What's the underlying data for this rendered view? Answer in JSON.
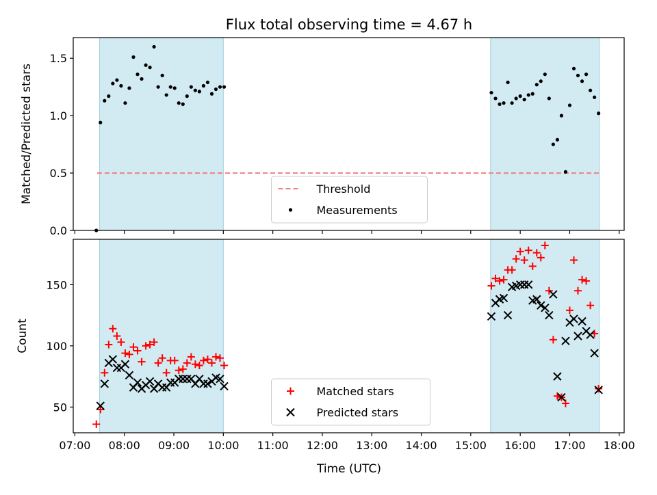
{
  "chart_data": {
    "title": "Flux total observing time = 4.67 h",
    "xlabel": "Time (UTC)",
    "x_ticks": [
      "07:00",
      "08:00",
      "09:00",
      "10:00",
      "11:00",
      "12:00",
      "13:00",
      "14:00",
      "15:00",
      "16:00",
      "17:00",
      "18:00"
    ],
    "x_range": [
      "06:58",
      "18:06"
    ],
    "shaded_intervals": [
      [
        "07:30",
        "10:00"
      ],
      [
        "15:24",
        "17:36"
      ]
    ],
    "shade_color": "#add8e6",
    "panels": [
      {
        "type": "scatter",
        "ylabel": "Matched/Predicted stars",
        "ylim": [
          0,
          1.68
        ],
        "y_ticks": [
          0.0,
          0.5,
          1.0,
          1.5
        ],
        "y_tick_labels": [
          "0.0",
          "0.5",
          "1.0",
          "1.5"
        ],
        "legend_position": "lower center",
        "series": [
          {
            "name": "Threshold",
            "kind": "dashed-line",
            "color": "#f08080",
            "points": [
              [
                "07:27",
                0.5
              ],
              [
                "17:37",
                0.5
              ]
            ]
          },
          {
            "name": "Measurements",
            "kind": "dot",
            "color": "#000000",
            "points": [
              [
                "07:26",
                0.0
              ],
              [
                "07:31",
                0.94
              ],
              [
                "07:36",
                1.13
              ],
              [
                "07:41",
                1.17
              ],
              [
                "07:46",
                1.28
              ],
              [
                "07:51",
                1.31
              ],
              [
                "07:56",
                1.26
              ],
              [
                "08:01",
                1.11
              ],
              [
                "08:06",
                1.24
              ],
              [
                "08:11",
                1.51
              ],
              [
                "08:16",
                1.36
              ],
              [
                "08:21",
                1.32
              ],
              [
                "08:26",
                1.44
              ],
              [
                "08:31",
                1.42
              ],
              [
                "08:36",
                1.6
              ],
              [
                "08:41",
                1.25
              ],
              [
                "08:46",
                1.35
              ],
              [
                "08:51",
                1.18
              ],
              [
                "08:56",
                1.25
              ],
              [
                "09:01",
                1.24
              ],
              [
                "09:06",
                1.11
              ],
              [
                "09:11",
                1.1
              ],
              [
                "09:16",
                1.17
              ],
              [
                "09:21",
                1.25
              ],
              [
                "09:26",
                1.22
              ],
              [
                "09:31",
                1.21
              ],
              [
                "09:36",
                1.26
              ],
              [
                "09:41",
                1.29
              ],
              [
                "09:46",
                1.19
              ],
              [
                "09:51",
                1.23
              ],
              [
                "09:56",
                1.25
              ],
              [
                "10:01",
                1.25
              ],
              [
                "15:25",
                1.2
              ],
              [
                "15:30",
                1.15
              ],
              [
                "15:35",
                1.1
              ],
              [
                "15:40",
                1.11
              ],
              [
                "15:45",
                1.29
              ],
              [
                "15:50",
                1.11
              ],
              [
                "15:55",
                1.15
              ],
              [
                "16:00",
                1.17
              ],
              [
                "16:05",
                1.14
              ],
              [
                "16:10",
                1.18
              ],
              [
                "16:15",
                1.19
              ],
              [
                "16:20",
                1.27
              ],
              [
                "16:25",
                1.3
              ],
              [
                "16:30",
                1.36
              ],
              [
                "16:35",
                1.15
              ],
              [
                "16:40",
                0.75
              ],
              [
                "16:45",
                0.79
              ],
              [
                "16:50",
                1.0
              ],
              [
                "16:55",
                0.51
              ],
              [
                "17:00",
                1.09
              ],
              [
                "17:05",
                1.41
              ],
              [
                "17:10",
                1.35
              ],
              [
                "17:15",
                1.3
              ],
              [
                "17:20",
                1.36
              ],
              [
                "17:25",
                1.22
              ],
              [
                "17:30",
                1.16
              ],
              [
                "17:35",
                1.02
              ]
            ]
          }
        ]
      },
      {
        "type": "scatter",
        "ylabel": "Count",
        "ylim": [
          29,
          187
        ],
        "y_ticks": [
          50,
          100,
          150
        ],
        "y_tick_labels": [
          "50",
          "100",
          "150"
        ],
        "legend_position": "lower center",
        "series": [
          {
            "name": "Matched stars",
            "kind": "plus",
            "color": "#ff0000",
            "points": [
              [
                "07:26",
                36
              ],
              [
                "07:31",
                48
              ],
              [
                "07:36",
                78
              ],
              [
                "07:41",
                101
              ],
              [
                "07:46",
                114
              ],
              [
                "07:51",
                108
              ],
              [
                "07:56",
                103
              ],
              [
                "08:01",
                94
              ],
              [
                "08:06",
                93
              ],
              [
                "08:11",
                99
              ],
              [
                "08:16",
                96
              ],
              [
                "08:21",
                87
              ],
              [
                "08:26",
                100
              ],
              [
                "08:31",
                101
              ],
              [
                "08:36",
                103
              ],
              [
                "08:41",
                86
              ],
              [
                "08:46",
                90
              ],
              [
                "08:51",
                78
              ],
              [
                "08:56",
                88
              ],
              [
                "09:01",
                88
              ],
              [
                "09:06",
                80
              ],
              [
                "09:11",
                81
              ],
              [
                "09:16",
                86
              ],
              [
                "09:21",
                91
              ],
              [
                "09:26",
                85
              ],
              [
                "09:31",
                84
              ],
              [
                "09:36",
                88
              ],
              [
                "09:41",
                89
              ],
              [
                "09:46",
                86
              ],
              [
                "09:51",
                91
              ],
              [
                "09:56",
                90
              ],
              [
                "10:01",
                84
              ],
              [
                "15:25",
                149
              ],
              [
                "15:30",
                155
              ],
              [
                "15:35",
                153
              ],
              [
                "15:40",
                154
              ],
              [
                "15:45",
                162
              ],
              [
                "15:50",
                162
              ],
              [
                "15:55",
                171
              ],
              [
                "16:00",
                177
              ],
              [
                "16:05",
                170
              ],
              [
                "16:10",
                178
              ],
              [
                "16:15",
                165
              ],
              [
                "16:20",
                176
              ],
              [
                "16:25",
                172
              ],
              [
                "16:30",
                182
              ],
              [
                "16:35",
                145
              ],
              [
                "16:40",
                105
              ],
              [
                "16:45",
                59
              ],
              [
                "16:50",
                58
              ],
              [
                "16:55",
                53
              ],
              [
                "17:00",
                129
              ],
              [
                "17:05",
                170
              ],
              [
                "17:10",
                145
              ],
              [
                "17:15",
                154
              ],
              [
                "17:20",
                153
              ],
              [
                "17:25",
                133
              ],
              [
                "17:30",
                110
              ],
              [
                "17:35",
                65
              ]
            ]
          },
          {
            "name": "Predicted stars",
            "kind": "x",
            "color": "#000000",
            "points": [
              [
                "07:31",
                51
              ],
              [
                "07:36",
                69
              ],
              [
                "07:41",
                86
              ],
              [
                "07:46",
                89
              ],
              [
                "07:51",
                82
              ],
              [
                "07:56",
                82
              ],
              [
                "08:01",
                85
              ],
              [
                "08:06",
                76
              ],
              [
                "08:11",
                66
              ],
              [
                "08:16",
                70
              ],
              [
                "08:21",
                65
              ],
              [
                "08:26",
                68
              ],
              [
                "08:31",
                71
              ],
              [
                "08:36",
                65
              ],
              [
                "08:41",
                69
              ],
              [
                "08:46",
                66
              ],
              [
                "08:51",
                66
              ],
              [
                "08:56",
                70
              ],
              [
                "09:01",
                70
              ],
              [
                "09:06",
                73
              ],
              [
                "09:11",
                73
              ],
              [
                "09:16",
                73
              ],
              [
                "09:21",
                73
              ],
              [
                "09:26",
                69
              ],
              [
                "09:31",
                73
              ],
              [
                "09:36",
                69
              ],
              [
                "09:41",
                69
              ],
              [
                "09:46",
                71
              ],
              [
                "09:51",
                74
              ],
              [
                "09:56",
                73
              ],
              [
                "10:01",
                67
              ],
              [
                "15:25",
                124
              ],
              [
                "15:30",
                135
              ],
              [
                "15:35",
                138
              ],
              [
                "15:40",
                139
              ],
              [
                "15:45",
                125
              ],
              [
                "15:50",
                148
              ],
              [
                "15:55",
                149
              ],
              [
                "16:00",
                150
              ],
              [
                "16:05",
                150
              ],
              [
                "16:10",
                150
              ],
              [
                "16:15",
                137
              ],
              [
                "16:20",
                138
              ],
              [
                "16:25",
                133
              ],
              [
                "16:30",
                131
              ],
              [
                "16:35",
                125
              ],
              [
                "16:40",
                142
              ],
              [
                "16:45",
                75
              ],
              [
                "16:50",
                58
              ],
              [
                "16:55",
                104
              ],
              [
                "17:00",
                119
              ],
              [
                "17:05",
                122
              ],
              [
                "17:10",
                108
              ],
              [
                "17:15",
                120
              ],
              [
                "17:20",
                112
              ],
              [
                "17:25",
                109
              ],
              [
                "17:30",
                94
              ],
              [
                "17:35",
                64
              ]
            ]
          }
        ]
      }
    ]
  }
}
